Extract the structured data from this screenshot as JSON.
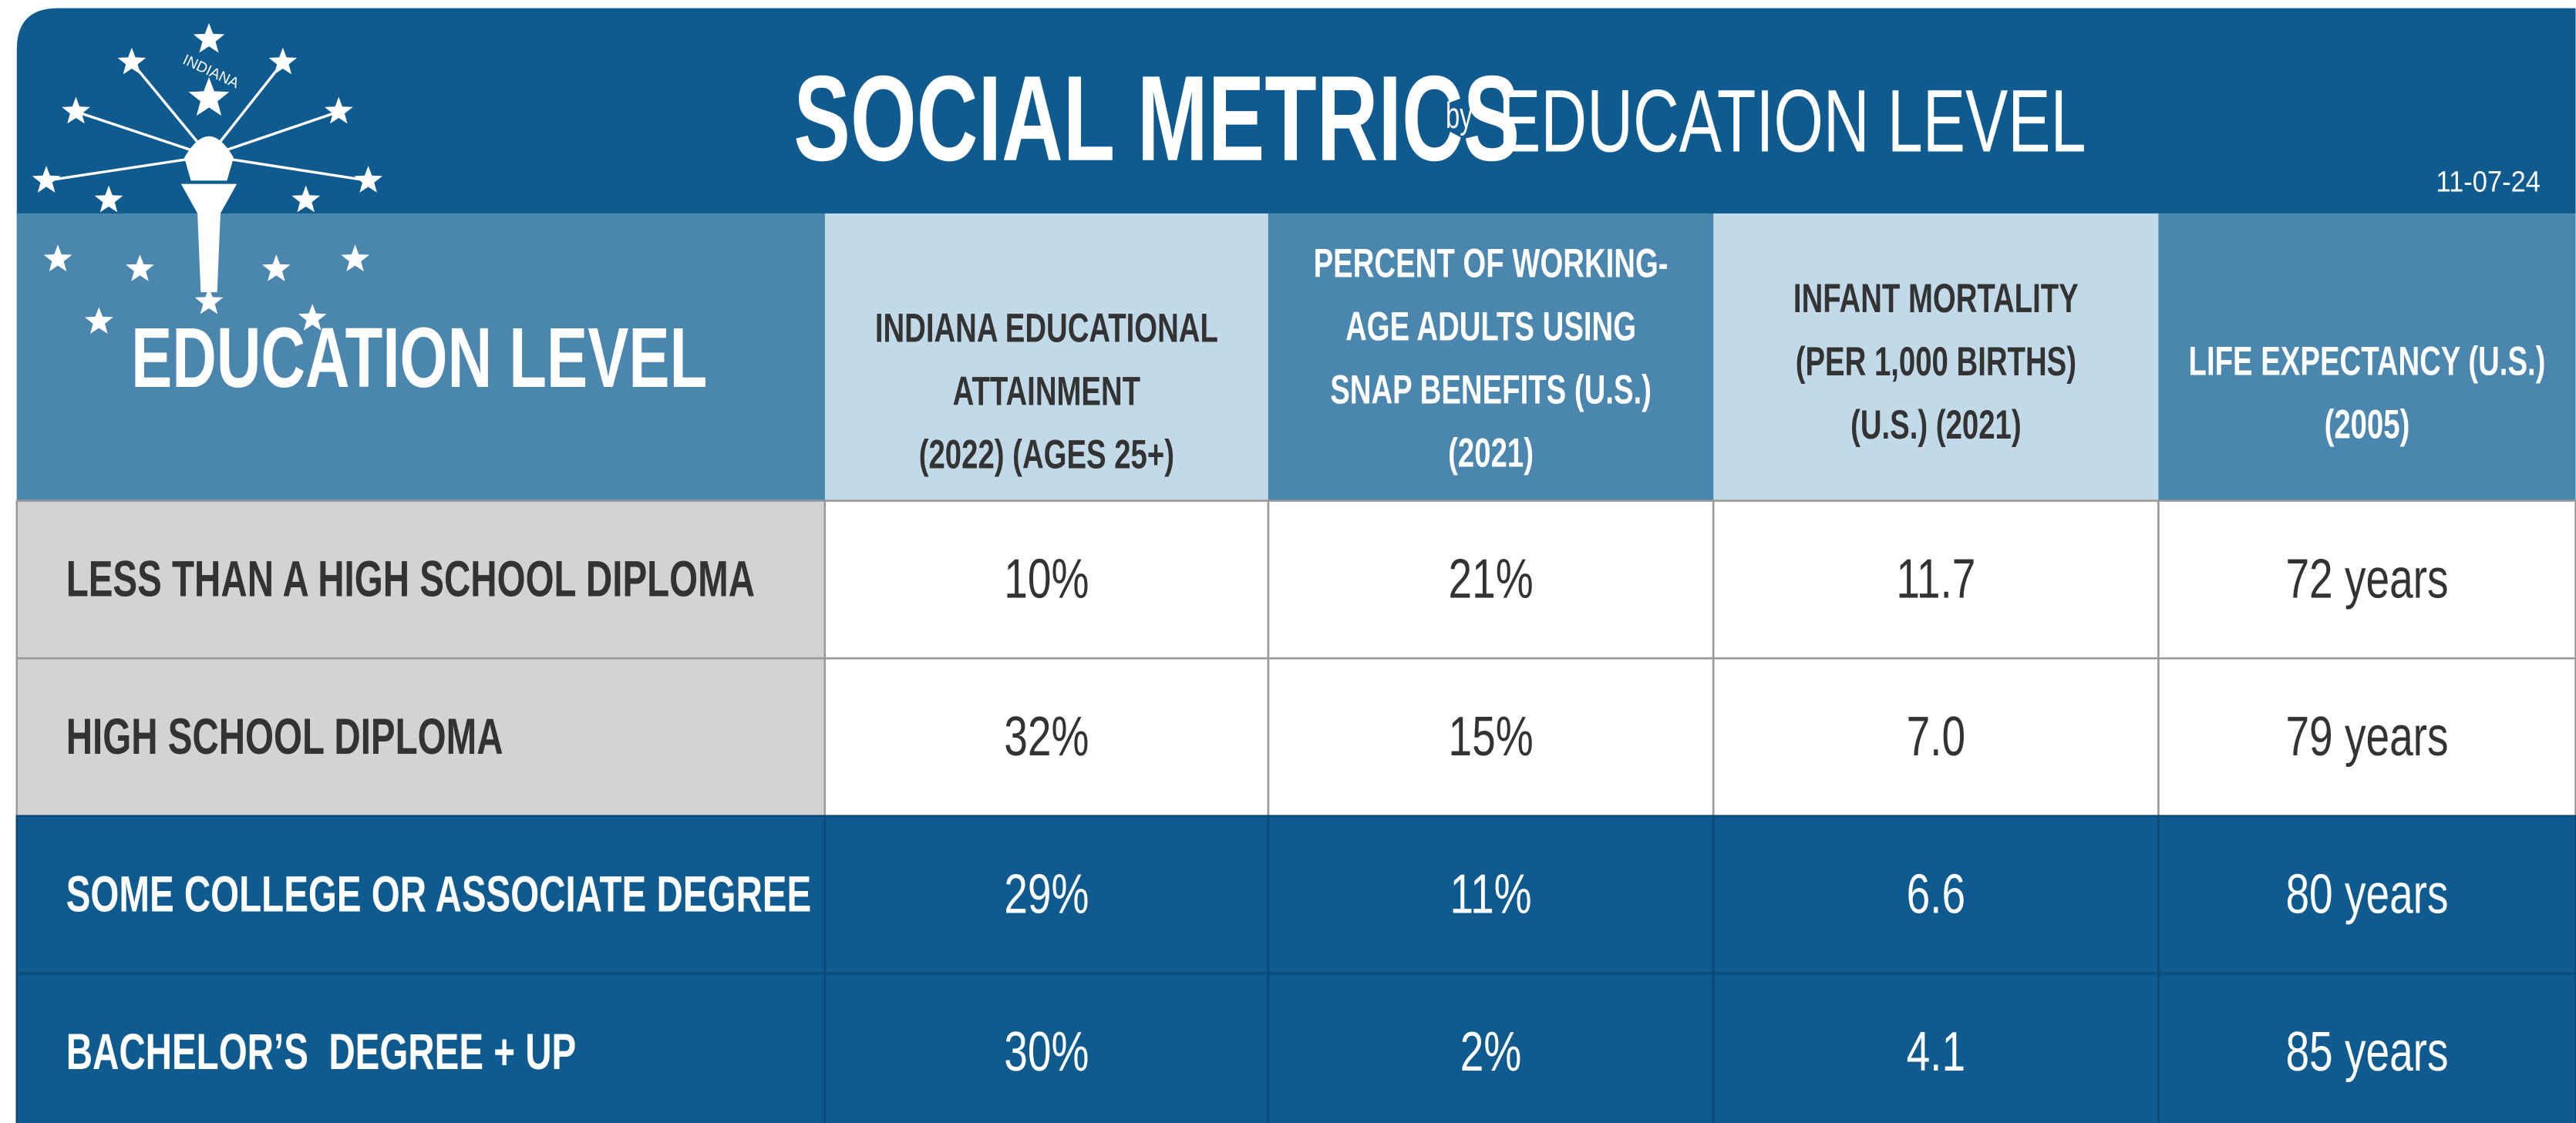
{
  "header": {
    "title": "SOCIAL METRICS",
    "title_by": "by",
    "title_suffix": "EDUCATION LEVEL",
    "date": "11-07-24",
    "logo_text": "INDIANA"
  },
  "table": {
    "columns": [
      [
        "EDUCATION LEVEL"
      ],
      [
        "INDIANA EDUCATIONAL",
        "ATTAINMENT",
        "(2022) (AGES 25+)"
      ],
      [
        "PERCENT OF WORKING-",
        "AGE ADULTS USING",
        "SNAP BENEFITS (U.S.)",
        "(2021)"
      ],
      [
        "INFANT MORTALITY",
        "(PER 1,000 BIRTHS)",
        "(U.S.) (2021)"
      ],
      [
        "LIFE EXPECTANCY (U.S.)",
        "(2005)"
      ]
    ],
    "rows": [
      [
        "LESS THAN A HIGH SCHOOL DIPLOMA",
        "10%",
        "21%",
        "11.7",
        "72 years"
      ],
      [
        "HIGH SCHOOL DIPLOMA",
        "32%",
        "15%",
        "7.0",
        "79 years"
      ],
      [
        "SOME COLLEGE OR ASSOCIATE DEGREE",
        "29%",
        "11%",
        "6.6",
        "80 years"
      ],
      [
        "BACHELOR’S  DEGREE + UP",
        "30%",
        "2%",
        "4.1",
        "85 years"
      ]
    ]
  }
}
